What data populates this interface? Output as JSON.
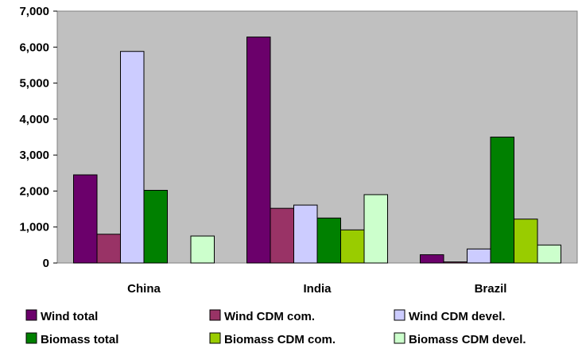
{
  "chart_data": {
    "type": "bar",
    "categories": [
      "China",
      "India",
      "Brazil"
    ],
    "series": [
      {
        "name": "Wind total",
        "color": "#6b006b",
        "values": [
          2450,
          6280,
          230
        ]
      },
      {
        "name": "Wind CDM com.",
        "color": "#993366",
        "values": [
          800,
          1520,
          30
        ]
      },
      {
        "name": "Wind CDM devel.",
        "color": "#ccccff",
        "values": [
          5880,
          1610,
          390
        ]
      },
      {
        "name": "Biomass total",
        "color": "#008000",
        "values": [
          2020,
          1250,
          3500
        ]
      },
      {
        "name": "Biomass CDM com.",
        "color": "#99cc00",
        "values": [
          0,
          920,
          1220
        ]
      },
      {
        "name": "Biomass CDM devel.",
        "color": "#ccffcc",
        "values": [
          750,
          1900,
          500
        ]
      }
    ],
    "ylim": [
      0,
      7000
    ],
    "yticks": [
      "0",
      "1,000",
      "2,000",
      "3,000",
      "4,000",
      "5,000",
      "6,000",
      "7,000"
    ],
    "grid": false,
    "legend_position": "bottom",
    "plot_background": "#c0c0c0"
  }
}
